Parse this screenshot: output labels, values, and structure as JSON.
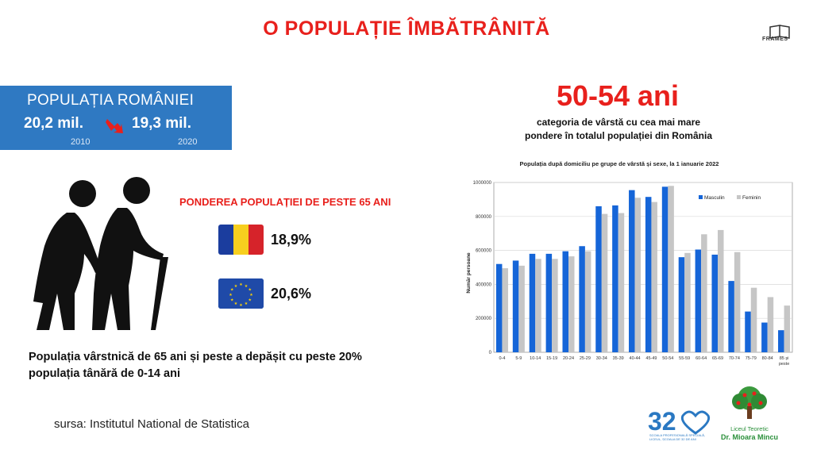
{
  "title": "O POPULAȚIE ÎMBĂTRÂNITĂ",
  "frames_logo": "FRAMES",
  "population_box": {
    "title": "POPULAȚIA ROMÂNIEI",
    "value_2010": "20,2 mil.",
    "value_2020": "19,3 mil.",
    "year_2010": "2010",
    "year_2020": "2020",
    "box_color": "#2f79c2"
  },
  "share_title": "PONDEREA POPULAȚIEI DE PESTE 65 ANI",
  "share_romania": "18,9%",
  "share_eu": "20,6%",
  "statement": "Populația vârstnică de 65 ani și peste a depășit cu peste 20% populația tânără de 0-14 ani",
  "source": "sursa: Institutul National de Statistica",
  "big_age": "50-54 ani",
  "age_caption_line1": "categoria de vârstă cu cea mai mare",
  "age_caption_line2": "pondere în totalul populației din România",
  "logo_32": "32",
  "logo_32_text": "ȘCOALA PROFESIONALĂ SPECIALĂ, LICEUL, ȘCOALA DE 32 DE ANI",
  "school_line1": "Liceul Teoretic",
  "school_line2": "Dr. Mioara Mincu",
  "accent_red": "#e8201c",
  "chart_data": {
    "type": "bar",
    "title": "Populația după domiciliu pe grupe de vârstă și sexe, la 1 ianuarie 2022",
    "ylabel": "Număr persoane",
    "xlabel": "",
    "ylim": [
      0,
      1000000
    ],
    "yticks": [
      "0",
      "200000",
      "400000",
      "600000",
      "800000",
      "1000000"
    ],
    "grid": true,
    "legend_position": "top-right",
    "categories": [
      "0-4",
      "5-9",
      "10-14",
      "15-19",
      "20-24",
      "25-29",
      "30-34",
      "35-39",
      "40-44",
      "45-49",
      "50-54",
      "55-59",
      "60-64",
      "65-69",
      "70-74",
      "75-79",
      "80-84",
      "85 și peste"
    ],
    "series": [
      {
        "name": "Masculin",
        "color": "#1565d8",
        "values": [
          520000,
          540000,
          580000,
          580000,
          595000,
          625000,
          860000,
          865000,
          955000,
          915000,
          975000,
          560000,
          605000,
          575000,
          420000,
          240000,
          175000,
          130000
        ]
      },
      {
        "name": "Feminin",
        "color": "#c6c6c6",
        "values": [
          495000,
          510000,
          550000,
          550000,
          565000,
          595000,
          815000,
          820000,
          910000,
          885000,
          980000,
          585000,
          695000,
          720000,
          590000,
          380000,
          325000,
          275000
        ]
      }
    ]
  }
}
